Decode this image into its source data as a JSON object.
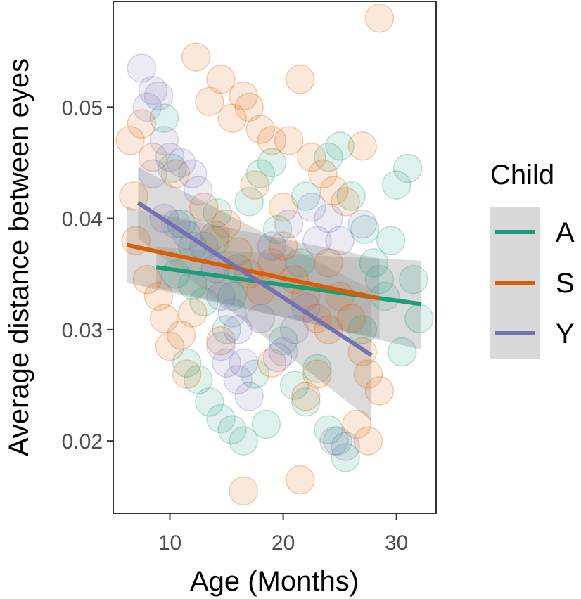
{
  "chart_data": {
    "type": "scatter",
    "xlabel": "Age (Months)",
    "ylabel": "Average distance between eyes",
    "xlim": [
      5,
      33.5
    ],
    "ylim": [
      0.0135,
      0.0595
    ],
    "x_ticks": [
      "10",
      "20",
      "30"
    ],
    "x_tick_values": [
      10,
      20,
      30
    ],
    "y_ticks": [
      "0.02",
      "0.03",
      "0.04",
      "0.05"
    ],
    "y_tick_values": [
      0.02,
      0.03,
      0.04,
      0.05
    ],
    "grid": false,
    "legend": {
      "title": "Child",
      "position": "right"
    },
    "series": [
      {
        "name": "A",
        "color": "#1B9E77",
        "trend": {
          "x": [
            8.8,
            32.2
          ],
          "y": [
            0.0356,
            0.0323
          ],
          "se_lower": [
            0.0338,
            0.0282
          ],
          "se_upper": [
            0.0374,
            0.0362
          ]
        },
        "points": [
          [
            9.5,
            0.049
          ],
          [
            10.2,
            0.0445
          ],
          [
            11,
            0.0395
          ],
          [
            12,
            0.0375
          ],
          [
            13,
            0.0325
          ],
          [
            14.2,
            0.0405
          ],
          [
            15,
            0.03
          ],
          [
            16,
            0.0355
          ],
          [
            17,
            0.0415
          ],
          [
            18,
            0.044
          ],
          [
            19,
            0.045
          ],
          [
            22,
            0.042
          ],
          [
            24,
            0.0455
          ],
          [
            25,
            0.0465
          ],
          [
            26,
            0.042
          ],
          [
            27.2,
            0.039
          ],
          [
            28,
            0.036
          ],
          [
            29,
            0.033
          ],
          [
            30,
            0.043
          ],
          [
            31,
            0.0445
          ],
          [
            31.5,
            0.0345
          ],
          [
            32,
            0.031
          ],
          [
            11.5,
            0.027
          ],
          [
            12.5,
            0.0255
          ],
          [
            13.5,
            0.0235
          ],
          [
            14.5,
            0.022
          ],
          [
            15.5,
            0.021
          ],
          [
            16.5,
            0.02
          ],
          [
            17.5,
            0.026
          ],
          [
            18.5,
            0.0215
          ],
          [
            20,
            0.029
          ],
          [
            21,
            0.025
          ],
          [
            22,
            0.0235
          ],
          [
            23,
            0.0265
          ],
          [
            24,
            0.021
          ],
          [
            24.8,
            0.02
          ],
          [
            25.5,
            0.0185
          ],
          [
            27,
            0.03
          ],
          [
            28.5,
            0.0345
          ],
          [
            29.5,
            0.038
          ],
          [
            30.5,
            0.028
          ],
          [
            12,
            0.034
          ],
          [
            15.5,
            0.033
          ],
          [
            21.5,
            0.036
          ],
          [
            19.5,
            0.039
          ],
          [
            10.5,
            0.035
          ],
          [
            14,
            0.038
          ]
        ]
      },
      {
        "name": "S",
        "color": "#D95F02",
        "trend": {
          "x": [
            6.2,
            28.5
          ],
          "y": [
            0.0376,
            0.0328
          ],
          "se_lower": [
            0.0342,
            0.0292
          ],
          "se_upper": [
            0.041,
            0.0364
          ]
        },
        "points": [
          [
            6.5,
            0.047
          ],
          [
            7.5,
            0.0485
          ],
          [
            8.5,
            0.0455
          ],
          [
            6.8,
            0.042
          ],
          [
            7,
            0.038
          ],
          [
            8,
            0.0345
          ],
          [
            9,
            0.033
          ],
          [
            9.5,
            0.031
          ],
          [
            10,
            0.0285
          ],
          [
            11,
            0.0295
          ],
          [
            11.5,
            0.026
          ],
          [
            12.3,
            0.0545
          ],
          [
            13.5,
            0.0505
          ],
          [
            14.5,
            0.0525
          ],
          [
            15.5,
            0.049
          ],
          [
            16.5,
            0.051
          ],
          [
            17,
            0.05
          ],
          [
            18,
            0.048
          ],
          [
            19,
            0.047
          ],
          [
            20.5,
            0.047
          ],
          [
            21.5,
            0.0525
          ],
          [
            22.5,
            0.0455
          ],
          [
            23.5,
            0.044
          ],
          [
            24.5,
            0.0425
          ],
          [
            25.5,
            0.0415
          ],
          [
            27,
            0.0465
          ],
          [
            28.5,
            0.058
          ],
          [
            13,
            0.041
          ],
          [
            14,
            0.0385
          ],
          [
            15,
            0.0395
          ],
          [
            16,
            0.037
          ],
          [
            17,
            0.035
          ],
          [
            18,
            0.0335
          ],
          [
            19,
            0.036
          ],
          [
            20,
            0.0375
          ],
          [
            21,
            0.0345
          ],
          [
            22,
            0.033
          ],
          [
            23,
            0.031
          ],
          [
            24,
            0.03
          ],
          [
            25,
            0.033
          ],
          [
            26,
            0.031
          ],
          [
            27,
            0.028
          ],
          [
            27.5,
            0.026
          ],
          [
            28.5,
            0.0245
          ],
          [
            26.5,
            0.0215
          ],
          [
            27.5,
            0.02
          ],
          [
            21.5,
            0.0165
          ],
          [
            16.5,
            0.0155
          ],
          [
            22,
            0.024
          ],
          [
            23,
            0.026
          ],
          [
            19,
            0.027
          ],
          [
            12,
            0.0315
          ],
          [
            10.5,
            0.044
          ],
          [
            14.5,
            0.029
          ],
          [
            17.5,
            0.043
          ],
          [
            20,
            0.041
          ],
          [
            24,
            0.036
          ]
        ]
      },
      {
        "name": "Y",
        "color": "#7570B3",
        "trend": {
          "x": [
            7.2,
            27.8
          ],
          "y": [
            0.0414,
            0.0277
          ],
          "se_lower": [
            0.0382,
            0.0218
          ],
          "se_upper": [
            0.0446,
            0.0336
          ]
        },
        "points": [
          [
            7.5,
            0.0535
          ],
          [
            8.5,
            0.0515
          ],
          [
            8,
            0.05
          ],
          [
            9,
            0.051
          ],
          [
            9.5,
            0.047
          ],
          [
            8.5,
            0.044
          ],
          [
            10,
            0.0455
          ],
          [
            11,
            0.045
          ],
          [
            12,
            0.044
          ],
          [
            12.5,
            0.0425
          ],
          [
            9.5,
            0.04
          ],
          [
            10.5,
            0.0395
          ],
          [
            11.5,
            0.0385
          ],
          [
            13,
            0.0375
          ],
          [
            14,
            0.0355
          ],
          [
            14.5,
            0.033
          ],
          [
            15.5,
            0.0315
          ],
          [
            16,
            0.03
          ],
          [
            14.5,
            0.0285
          ],
          [
            15,
            0.027
          ],
          [
            16,
            0.0255
          ],
          [
            17,
            0.024
          ],
          [
            20,
            0.028
          ],
          [
            19.5,
            0.0275
          ],
          [
            21,
            0.03
          ],
          [
            22,
            0.032
          ],
          [
            19,
            0.0375
          ],
          [
            20.5,
            0.0395
          ],
          [
            22.5,
            0.041
          ],
          [
            24,
            0.04
          ],
          [
            25,
            0.038
          ],
          [
            27,
            0.0395
          ],
          [
            24.5,
            0.02
          ],
          [
            25.5,
            0.0195
          ],
          [
            16.5,
            0.027
          ],
          [
            18,
            0.031
          ],
          [
            23,
            0.038
          ]
        ]
      }
    ]
  }
}
